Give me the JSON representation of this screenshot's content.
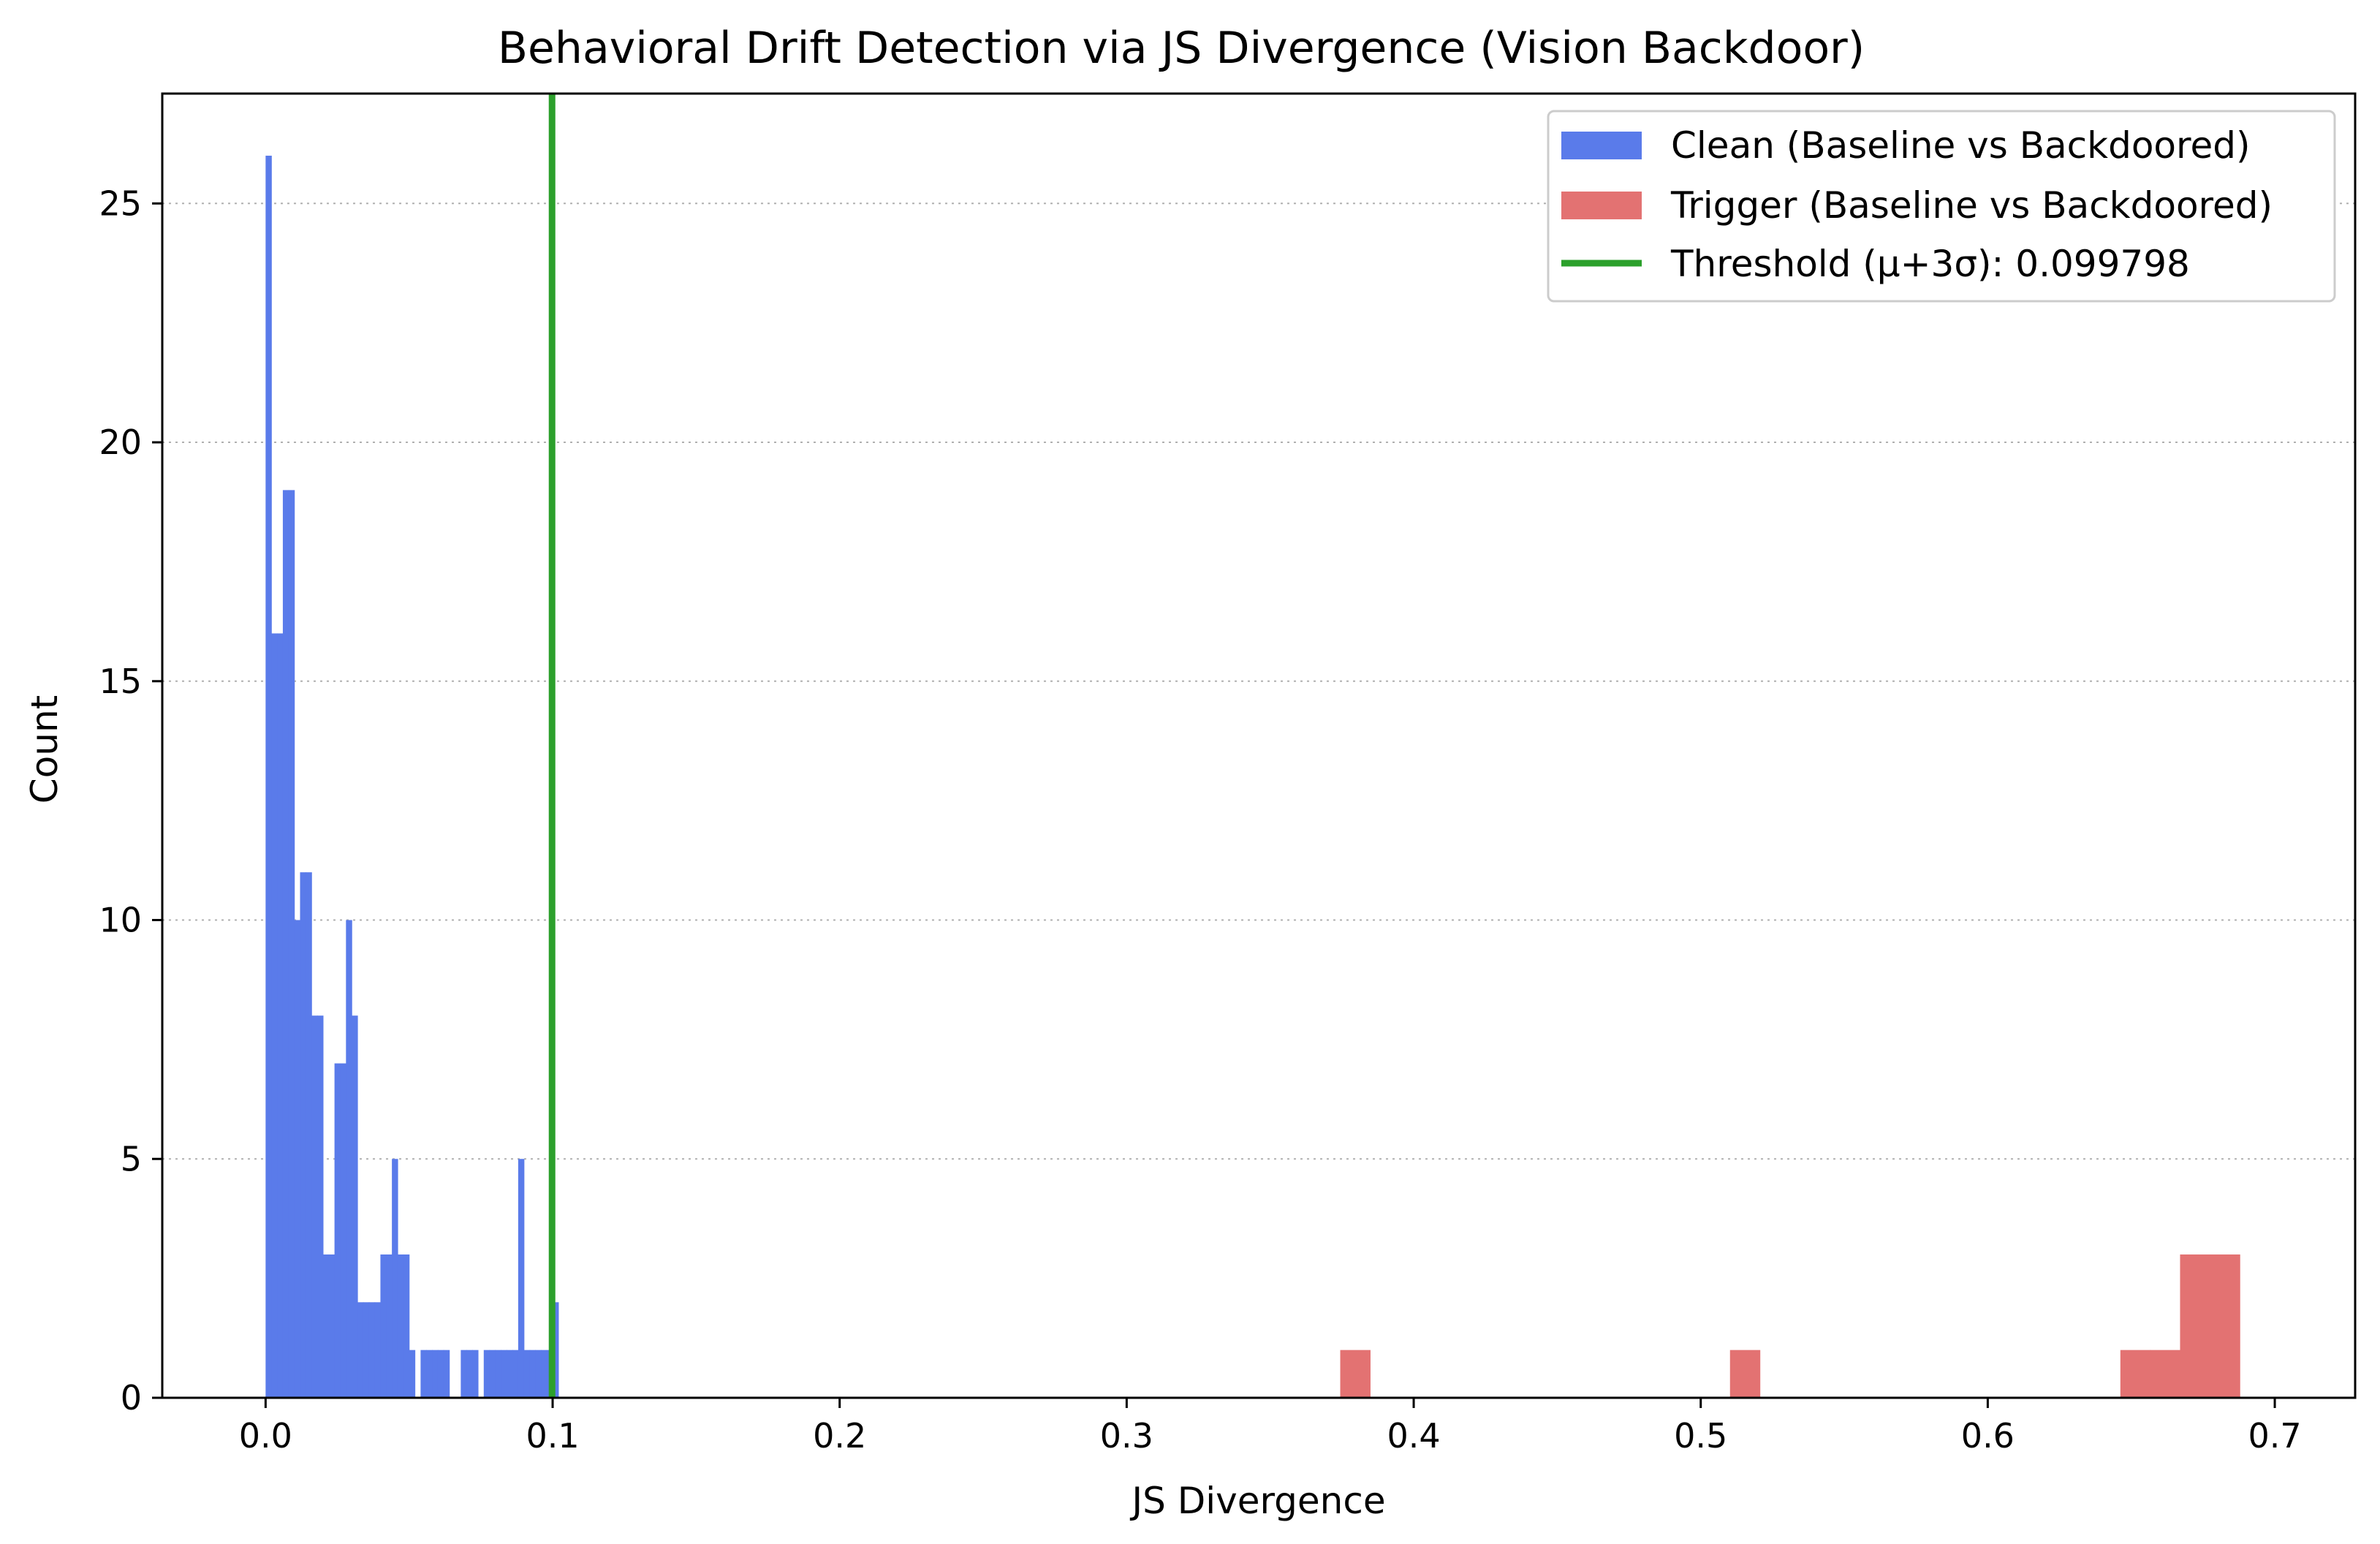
{
  "chart_data": {
    "type": "bar",
    "title": "Behavioral Drift Detection via JS Divergence (Vision Backdoor)",
    "xlabel": "JS Divergence",
    "ylabel": "Count",
    "xlim": [
      -0.036,
      0.728
    ],
    "ylim": [
      0,
      27.3
    ],
    "xticks": [
      0.0,
      0.1,
      0.2,
      0.3,
      0.4,
      0.5,
      0.6,
      0.7
    ],
    "xtick_labels": [
      "0.0",
      "0.1",
      "0.2",
      "0.3",
      "0.4",
      "0.5",
      "0.6",
      "0.7"
    ],
    "yticks": [
      0,
      5,
      10,
      15,
      20,
      25
    ],
    "ytick_labels": [
      "0",
      "5",
      "10",
      "15",
      "20",
      "25"
    ],
    "grid": "y-dotted",
    "legend_position": "top-right",
    "series": [
      {
        "name": "Clean (Baseline vs Backdoored)",
        "color": "#5a7bea",
        "bin_width": 0.002,
        "bins_start": [
          0.0,
          0.002,
          0.004,
          0.006,
          0.008,
          0.01,
          0.012,
          0.014,
          0.016,
          0.018,
          0.02,
          0.022,
          0.024,
          0.026,
          0.028,
          0.03,
          0.032,
          0.034,
          0.036,
          0.038,
          0.04,
          0.042,
          0.044,
          0.046,
          0.048,
          0.05,
          0.052,
          0.054,
          0.056,
          0.058,
          0.06,
          0.062,
          0.064,
          0.066,
          0.068,
          0.07,
          0.072,
          0.074,
          0.076,
          0.078,
          0.08,
          0.082,
          0.084,
          0.086,
          0.088,
          0.09,
          0.092,
          0.094,
          0.096,
          0.098,
          0.1
        ],
        "counts": [
          26,
          16,
          16,
          19,
          19,
          10,
          11,
          11,
          8,
          8,
          3,
          3,
          7,
          7,
          10,
          8,
          2,
          2,
          2,
          2,
          3,
          3,
          5,
          3,
          3,
          1,
          0,
          1,
          1,
          1,
          1,
          1,
          0,
          0,
          1,
          1,
          1,
          0,
          1,
          1,
          1,
          1,
          1,
          1,
          5,
          1,
          1,
          1,
          1,
          1,
          2
        ]
      },
      {
        "name": "Trigger (Baseline vs Backdoored)",
        "color": "#e37272",
        "bin_width": 0.0104,
        "bins_start": [
          0.3744,
          0.5102,
          0.6462,
          0.6566,
          0.667,
          0.6774
        ],
        "counts": [
          1,
          1,
          1,
          1,
          3,
          3
        ]
      }
    ],
    "threshold": {
      "label": "Threshold (μ+3σ): 0.099798",
      "value": 0.099798,
      "color": "#2ca02c"
    }
  }
}
